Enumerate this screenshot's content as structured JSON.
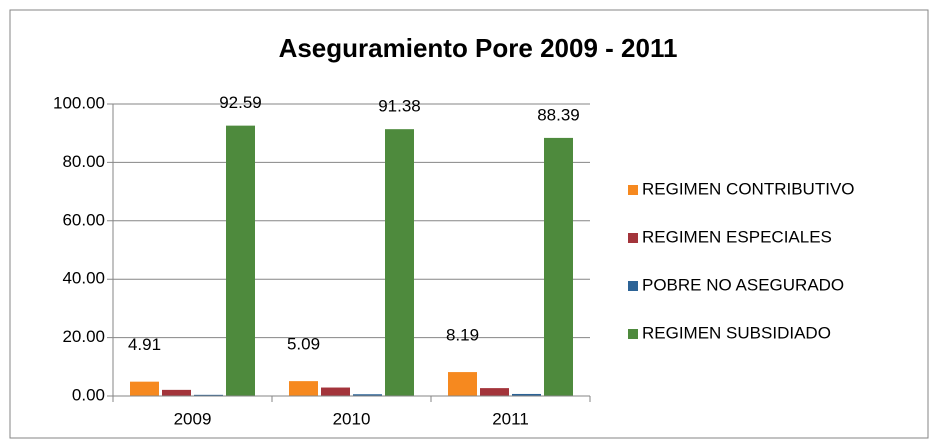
{
  "chart_data": {
    "type": "bar",
    "title": "Aseguramiento Pore 2009 - 2011",
    "categories": [
      "2009",
      "2010",
      "2011"
    ],
    "series": [
      {
        "name": "REGIMEN CONTRIBUTIVO",
        "color": "#f6891f",
        "values": [
          4.91,
          5.09,
          8.19
        ],
        "data_labels": true
      },
      {
        "name": "REGIMEN ESPECIALES",
        "color": "#a3343b",
        "values": [
          2.1,
          2.9,
          2.7
        ],
        "data_labels": false
      },
      {
        "name": "POBRE NO ASEGURADO",
        "color": "#2c6396",
        "values": [
          0.4,
          0.6,
          0.7
        ],
        "data_labels": false
      },
      {
        "name": "REGIMEN SUBSIDIADO",
        "color": "#4e8a3d",
        "values": [
          92.59,
          91.38,
          88.39
        ],
        "data_labels": true
      }
    ],
    "ylim": [
      0,
      100
    ],
    "yticks": [
      {
        "value": 0,
        "label": "0.00"
      },
      {
        "value": 20,
        "label": "20.00"
      },
      {
        "value": 40,
        "label": "40.00"
      },
      {
        "value": 60,
        "label": "60.00"
      },
      {
        "value": 80,
        "label": "80.00"
      },
      {
        "value": 100,
        "label": "100.00"
      }
    ],
    "grid": true,
    "legend": "right"
  }
}
